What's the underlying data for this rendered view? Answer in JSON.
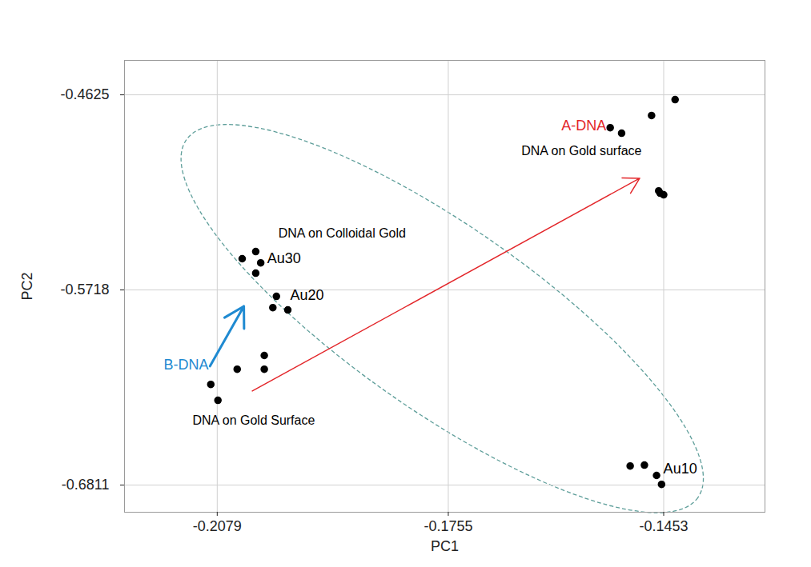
{
  "chart_data": {
    "type": "scatter",
    "xlabel": "PC1",
    "ylabel": "PC2",
    "xlim": [
      -0.2209,
      -0.1311
    ],
    "ylim": [
      -0.6963,
      -0.4432
    ],
    "xticks": [
      -0.2079,
      -0.1755,
      -0.1453
    ],
    "yticks": [
      -0.4625,
      -0.5718,
      -0.6811
    ],
    "grid": true,
    "color": "#000000",
    "marker": "circle",
    "series": [
      {
        "name": "A-DNA",
        "x": [
          -0.1437,
          -0.147,
          -0.1528,
          -0.1512,
          -0.146,
          -0.1453,
          -0.1458
        ],
        "y": [
          -0.4652,
          -0.4741,
          -0.4809,
          -0.484,
          -0.5163,
          -0.5185,
          -0.5176
        ]
      },
      {
        "name": "Au30",
        "x": [
          -0.2044,
          -0.2025,
          -0.2018,
          -0.2025
        ],
        "y": [
          -0.5543,
          -0.5503,
          -0.5566,
          -0.5624
        ]
      },
      {
        "name": "Au20",
        "x": [
          -0.1996,
          -0.2001,
          -0.198
        ],
        "y": [
          -0.5754,
          -0.5817,
          -0.583
        ]
      },
      {
        "name": "B-DNA",
        "x": [
          -0.2013,
          -0.2013,
          -0.2051,
          -0.2088,
          -0.2078
        ],
        "y": [
          -0.6085,
          -0.6162,
          -0.6162,
          -0.6247,
          -0.6336
        ]
      },
      {
        "name": "Au10",
        "x": [
          -0.15,
          -0.148,
          -0.1463,
          -0.1456
        ],
        "y": [
          -0.6704,
          -0.6699,
          -0.6757,
          -0.6807
        ]
      }
    ],
    "annotations": [
      {
        "text": "A-DNA",
        "color": "#e3262a"
      },
      {
        "text": "DNA on Gold surface",
        "color": "#000000"
      },
      {
        "text": "DNA on Colloidal Gold",
        "color": "#000000"
      },
      {
        "text": "Au30",
        "color": "#000000"
      },
      {
        "text": "Au20",
        "color": "#000000"
      },
      {
        "text": "B-DNA",
        "color": "#1f8ad1"
      },
      {
        "text": "DNA on Gold Surface",
        "color": "#000000"
      },
      {
        "text": "Au10",
        "color": "#000000"
      }
    ]
  }
}
